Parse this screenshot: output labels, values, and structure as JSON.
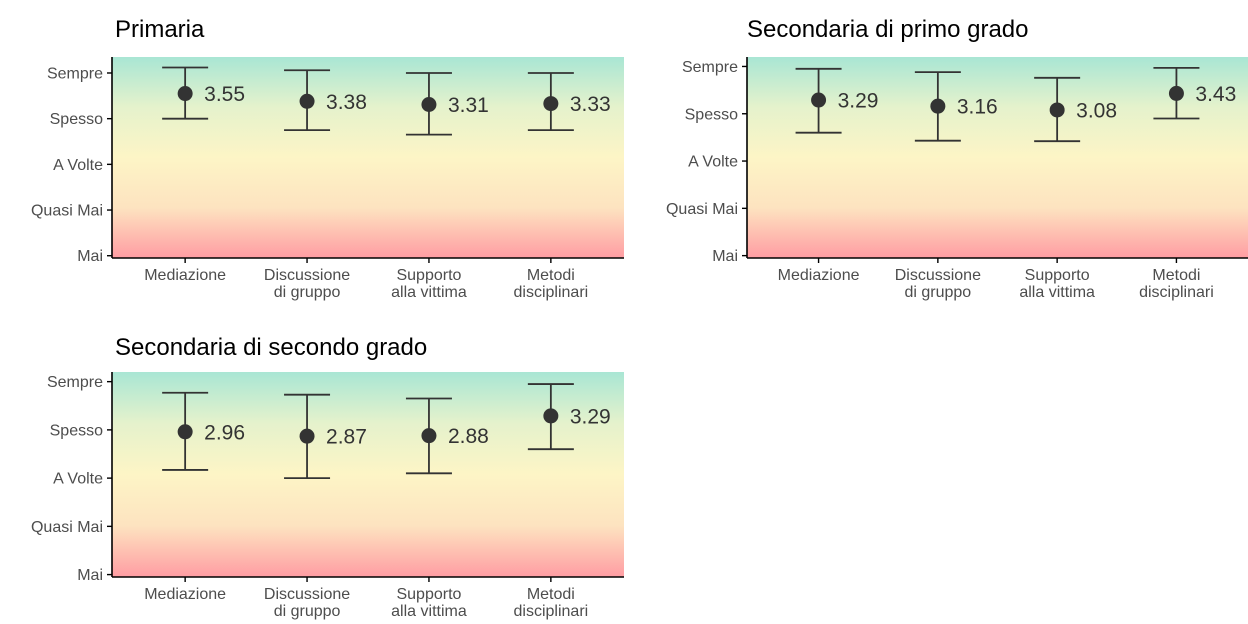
{
  "colors": {
    "top": "#a9e6d4",
    "upper": "#e5f2cc",
    "middle": "#fdf5c6",
    "lower": "#fde3c0",
    "bottom": "#ff9da3",
    "mark": "#333333",
    "axis": "#000000"
  },
  "chart_data": [
    {
      "type": "scatter",
      "title": "Primaria",
      "categories": [
        "Mediazione",
        "Discussione\ndi gruppo",
        "Supporto\nalla vittima",
        "Metodi\ndisciplinari"
      ],
      "values": [
        3.55,
        3.38,
        3.31,
        3.33
      ],
      "labels": [
        "3.55",
        "3.38",
        "3.31",
        "3.33"
      ],
      "err_low": [
        3.0,
        2.75,
        2.65,
        2.75
      ],
      "err_high": [
        4.12,
        4.06,
        4.0,
        4.0
      ],
      "yticks": [
        "Mai",
        "Quasi Mai",
        "A Volte",
        "Spesso",
        "Sempre"
      ],
      "ylim": [
        -0.05,
        4.35
      ]
    },
    {
      "type": "scatter",
      "title": "Secondaria di primo grado",
      "categories": [
        "Mediazione",
        "Discussione\ndi gruppo",
        "Supporto\nalla vittima",
        "Metodi\ndisciplinari"
      ],
      "values": [
        3.29,
        3.16,
        3.08,
        3.43
      ],
      "labels": [
        "3.29",
        "3.16",
        "3.08",
        "3.43"
      ],
      "err_low": [
        2.6,
        2.43,
        2.42,
        2.9
      ],
      "err_high": [
        3.95,
        3.88,
        3.76,
        3.97
      ],
      "yticks": [
        "Mai",
        "Quasi Mai",
        "A Volte",
        "Spesso",
        "Sempre"
      ],
      "ylim": [
        -0.05,
        4.2
      ]
    },
    {
      "type": "scatter",
      "title": "Secondaria di secondo grado",
      "categories": [
        "Mediazione",
        "Discussione\ndi gruppo",
        "Supporto\nalla vittima",
        "Metodi\ndisciplinari"
      ],
      "values": [
        2.96,
        2.87,
        2.88,
        3.29
      ],
      "labels": [
        "2.96",
        "2.87",
        "2.88",
        "3.29"
      ],
      "err_low": [
        2.17,
        2.0,
        2.1,
        2.6
      ],
      "err_high": [
        3.77,
        3.73,
        3.65,
        3.95
      ],
      "yticks": [
        "Mai",
        "Quasi Mai",
        "A Volte",
        "Spesso",
        "Sempre"
      ],
      "ylim": [
        -0.05,
        4.2
      ]
    }
  ]
}
